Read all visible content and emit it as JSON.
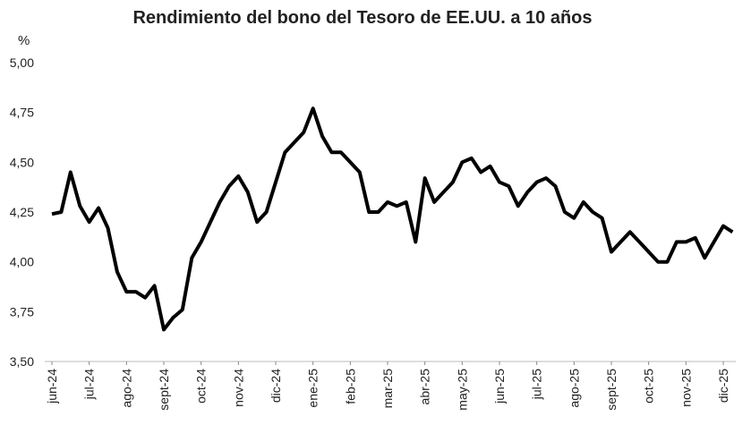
{
  "chart_data": {
    "type": "line",
    "title": "Rendimiento del bono del Tesoro de EE.UU. a 10 años",
    "y_label": "%",
    "categories": [
      "jun-24",
      null,
      null,
      null,
      "jul-24",
      null,
      null,
      null,
      "ago-24",
      null,
      null,
      null,
      "sept-24",
      null,
      null,
      null,
      "oct-24",
      null,
      null,
      null,
      "nov-24",
      null,
      null,
      null,
      "dic-24",
      null,
      null,
      null,
      "ene-25",
      null,
      null,
      null,
      "feb-25",
      null,
      null,
      null,
      "mar-25",
      null,
      null,
      null,
      "abr-25",
      null,
      null,
      null,
      "may-25",
      null,
      null,
      null,
      "jun-25",
      null,
      null,
      null,
      "jul-25",
      null,
      null,
      null,
      "ago-25",
      null,
      null,
      null,
      "sept-25",
      null,
      null,
      null,
      "oct-25",
      null,
      null,
      null,
      "nov-25",
      null,
      null,
      null,
      "dic-25",
      null
    ],
    "values": [
      4.24,
      4.25,
      4.45,
      4.28,
      4.2,
      4.27,
      4.17,
      3.95,
      3.85,
      3.85,
      3.82,
      3.88,
      3.66,
      3.72,
      3.76,
      4.02,
      4.1,
      4.2,
      4.3,
      4.38,
      4.43,
      4.35,
      4.2,
      4.25,
      4.4,
      4.55,
      4.6,
      4.65,
      4.77,
      4.63,
      4.55,
      4.55,
      4.5,
      4.45,
      4.25,
      4.25,
      4.3,
      4.28,
      4.3,
      4.1,
      4.42,
      4.3,
      4.35,
      4.4,
      4.5,
      4.52,
      4.45,
      4.48,
      4.4,
      4.38,
      4.28,
      4.35,
      4.4,
      4.42,
      4.38,
      4.25,
      4.22,
      4.3,
      4.25,
      4.22,
      4.05,
      4.1,
      4.15,
      4.1,
      4.05,
      4.0,
      4.0,
      4.1,
      4.1,
      4.12,
      4.02,
      4.1,
      4.18,
      4.15
    ],
    "color": "#000000",
    "ylim": [
      3.5,
      5.0
    ],
    "yticks": [
      {
        "value": 3.5,
        "label": "3,50"
      },
      {
        "value": 3.75,
        "label": "3,75"
      },
      {
        "value": 4.0,
        "label": "4,00"
      },
      {
        "value": 4.25,
        "label": "4,25"
      },
      {
        "value": 4.5,
        "label": "4,50"
      },
      {
        "value": 4.75,
        "label": "4,75"
      },
      {
        "value": 5.0,
        "label": "5,00"
      }
    ],
    "grid": false
  }
}
